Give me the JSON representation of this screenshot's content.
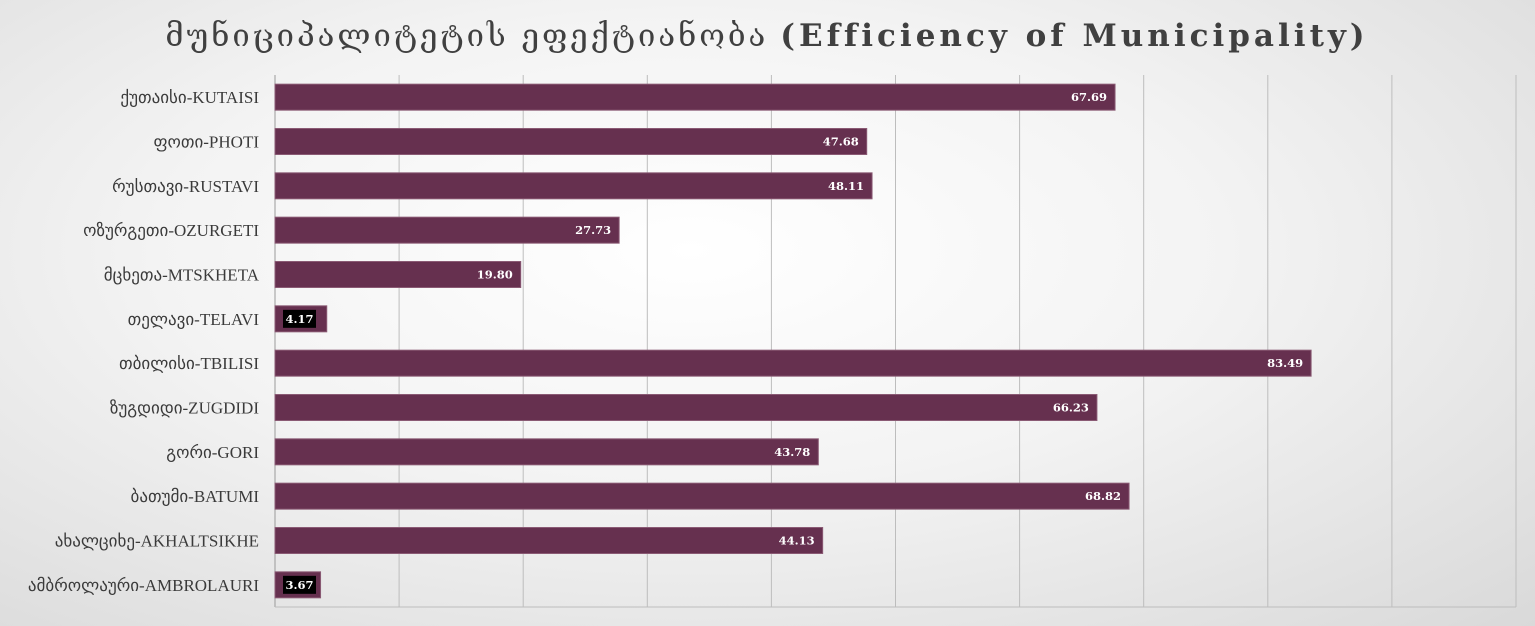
{
  "chart_data": {
    "type": "bar",
    "orientation": "horizontal",
    "title_ka": "მუნიციპალიტეტის ეფექტიანობა",
    "title_en": "(Efficiency of Municipality)",
    "categories": [
      "ქუთაისი-KUTAISI",
      "ფოთი-PHOTI",
      "რუსთავი-RUSTAVI",
      "ოზურგეთი-OZURGETI",
      "მცხეთა-MTSKHETA",
      "თელავი-TELAVI",
      "თბილისი-TBILISI",
      "ზუგდიდი-ZUGDIDI",
      "გორი-GORI",
      "ბათუმი-BATUMI",
      "ახალციხე-AKHALTSIKHE",
      "ამბროლაური-AMBROLAURI"
    ],
    "values": [
      67.69,
      47.68,
      48.11,
      27.73,
      19.8,
      4.17,
      83.49,
      66.23,
      43.78,
      68.82,
      44.13,
      3.67
    ],
    "value_labels": [
      "67.69",
      "47.68",
      "48.11",
      "27.73",
      "19.80",
      "4.17",
      "83.49",
      "66.23",
      "43.78",
      "68.82",
      "44.13",
      "3.67"
    ],
    "xlim": [
      0,
      100
    ],
    "grid": true,
    "x_tick_labels_visible": false,
    "legend": "none",
    "bar_color": "#66304f",
    "small_value_label_box_color": "#000000"
  }
}
